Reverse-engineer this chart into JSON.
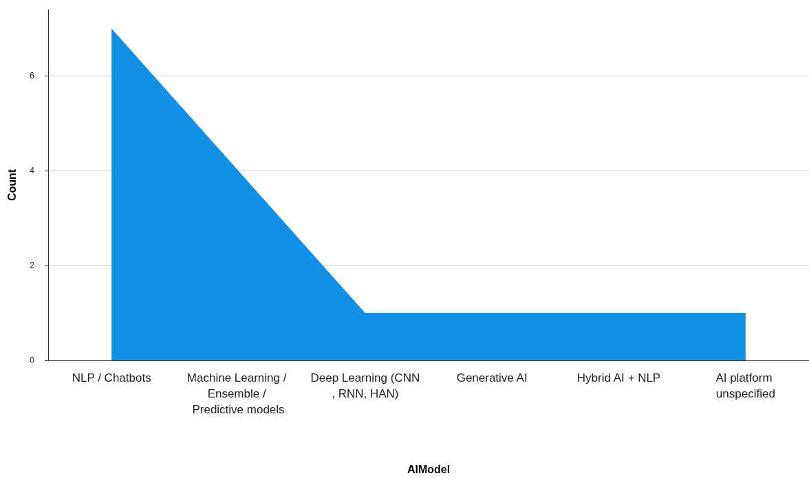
{
  "chart_data": {
    "type": "area",
    "xlabel": "AIModel",
    "ylabel": "Count",
    "categories": [
      "NLP / Chatbots",
      "Machine Learning / Ensemble / Predictive models",
      "Deep Learning (CNN, RNN, HAN)",
      "Generative AI",
      "Hybrid AI + NLP",
      "AI platform unspecified"
    ],
    "values": [
      7,
      4,
      1,
      1,
      1,
      1
    ],
    "color": "#1390e6",
    "ylim": [
      0,
      7.4
    ],
    "yticks": [
      0,
      2,
      4,
      6
    ],
    "grid": "y",
    "marker": "none"
  }
}
